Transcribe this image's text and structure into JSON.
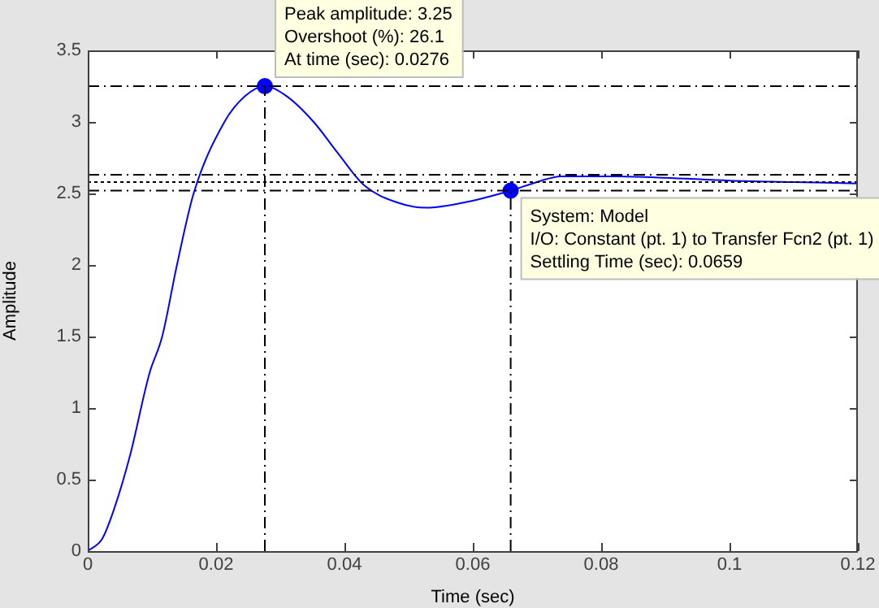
{
  "chart_data": {
    "type": "line",
    "xlabel": "Time (sec)",
    "ylabel": "Amplitude",
    "xlim": [
      0,
      0.12
    ],
    "xticks": [
      0,
      0.02,
      0.04,
      0.06,
      0.08,
      0.1,
      0.12
    ],
    "ylim": [
      0,
      3.5
    ],
    "yticks": [
      0,
      0.5,
      1,
      1.5,
      2,
      2.5,
      3,
      3.5
    ],
    "grid": false,
    "legend": false,
    "series": [
      {
        "type": "line",
        "color": "#0000ff",
        "marker": "none",
        "x": [
          0,
          0.0023,
          0.0043,
          0.0066,
          0.0096,
          0.0116,
          0.0139,
          0.0165,
          0.0213,
          0.0245,
          0.0276,
          0.031,
          0.0352,
          0.039,
          0.043,
          0.048,
          0.0527,
          0.059,
          0.0659,
          0.07,
          0.0737,
          0.0823,
          0.09,
          0.1,
          0.11,
          0.12
        ],
        "values": [
          0,
          0.09,
          0.32,
          0.67,
          1.24,
          1.5,
          2.0,
          2.5,
          3.0,
          3.18,
          3.25,
          3.18,
          3.0,
          2.78,
          2.56,
          2.44,
          2.4,
          2.44,
          2.52,
          2.58,
          2.62,
          2.62,
          2.61,
          2.59,
          2.58,
          2.57
        ]
      },
      {
        "type": "scatter",
        "color": "#0000ff",
        "marker": "circle",
        "x": [
          0.0276,
          0.0659
        ],
        "values": [
          3.25,
          2.52
        ]
      }
    ],
    "ref_lines": [
      {
        "axis": "y",
        "value": 2.63,
        "color": "#000000",
        "line_style": "dashed"
      },
      {
        "axis": "y",
        "value": 2.58,
        "color": "#000000",
        "line_style": "dotted"
      },
      {
        "axis": "y",
        "value": 2.52,
        "color": "#000000",
        "line_style": "dashed"
      },
      {
        "axis": "y",
        "value": 3.25,
        "color": "#000000",
        "line_style": "dashed"
      },
      {
        "axis": "x",
        "value": 0.0276,
        "color": "#000000",
        "line_style": "dashed"
      },
      {
        "axis": "x",
        "value": 0.0659,
        "color": "#000000",
        "line_style": "dashed"
      }
    ],
    "annotations": [
      {
        "text": "Peak amplitude: 3.25\nOvershoot (%): 26.1\nAt time (sec): 0.0276",
        "x": 0.0276,
        "y": 3.25
      },
      {
        "text": "System: Model\nI/O: Constant (pt. 1) to Transfer Fcn2 (pt. 1)\nSettling Time (sec): 0.0659",
        "x": 0.0659,
        "y": 2.52
      }
    ]
  }
}
